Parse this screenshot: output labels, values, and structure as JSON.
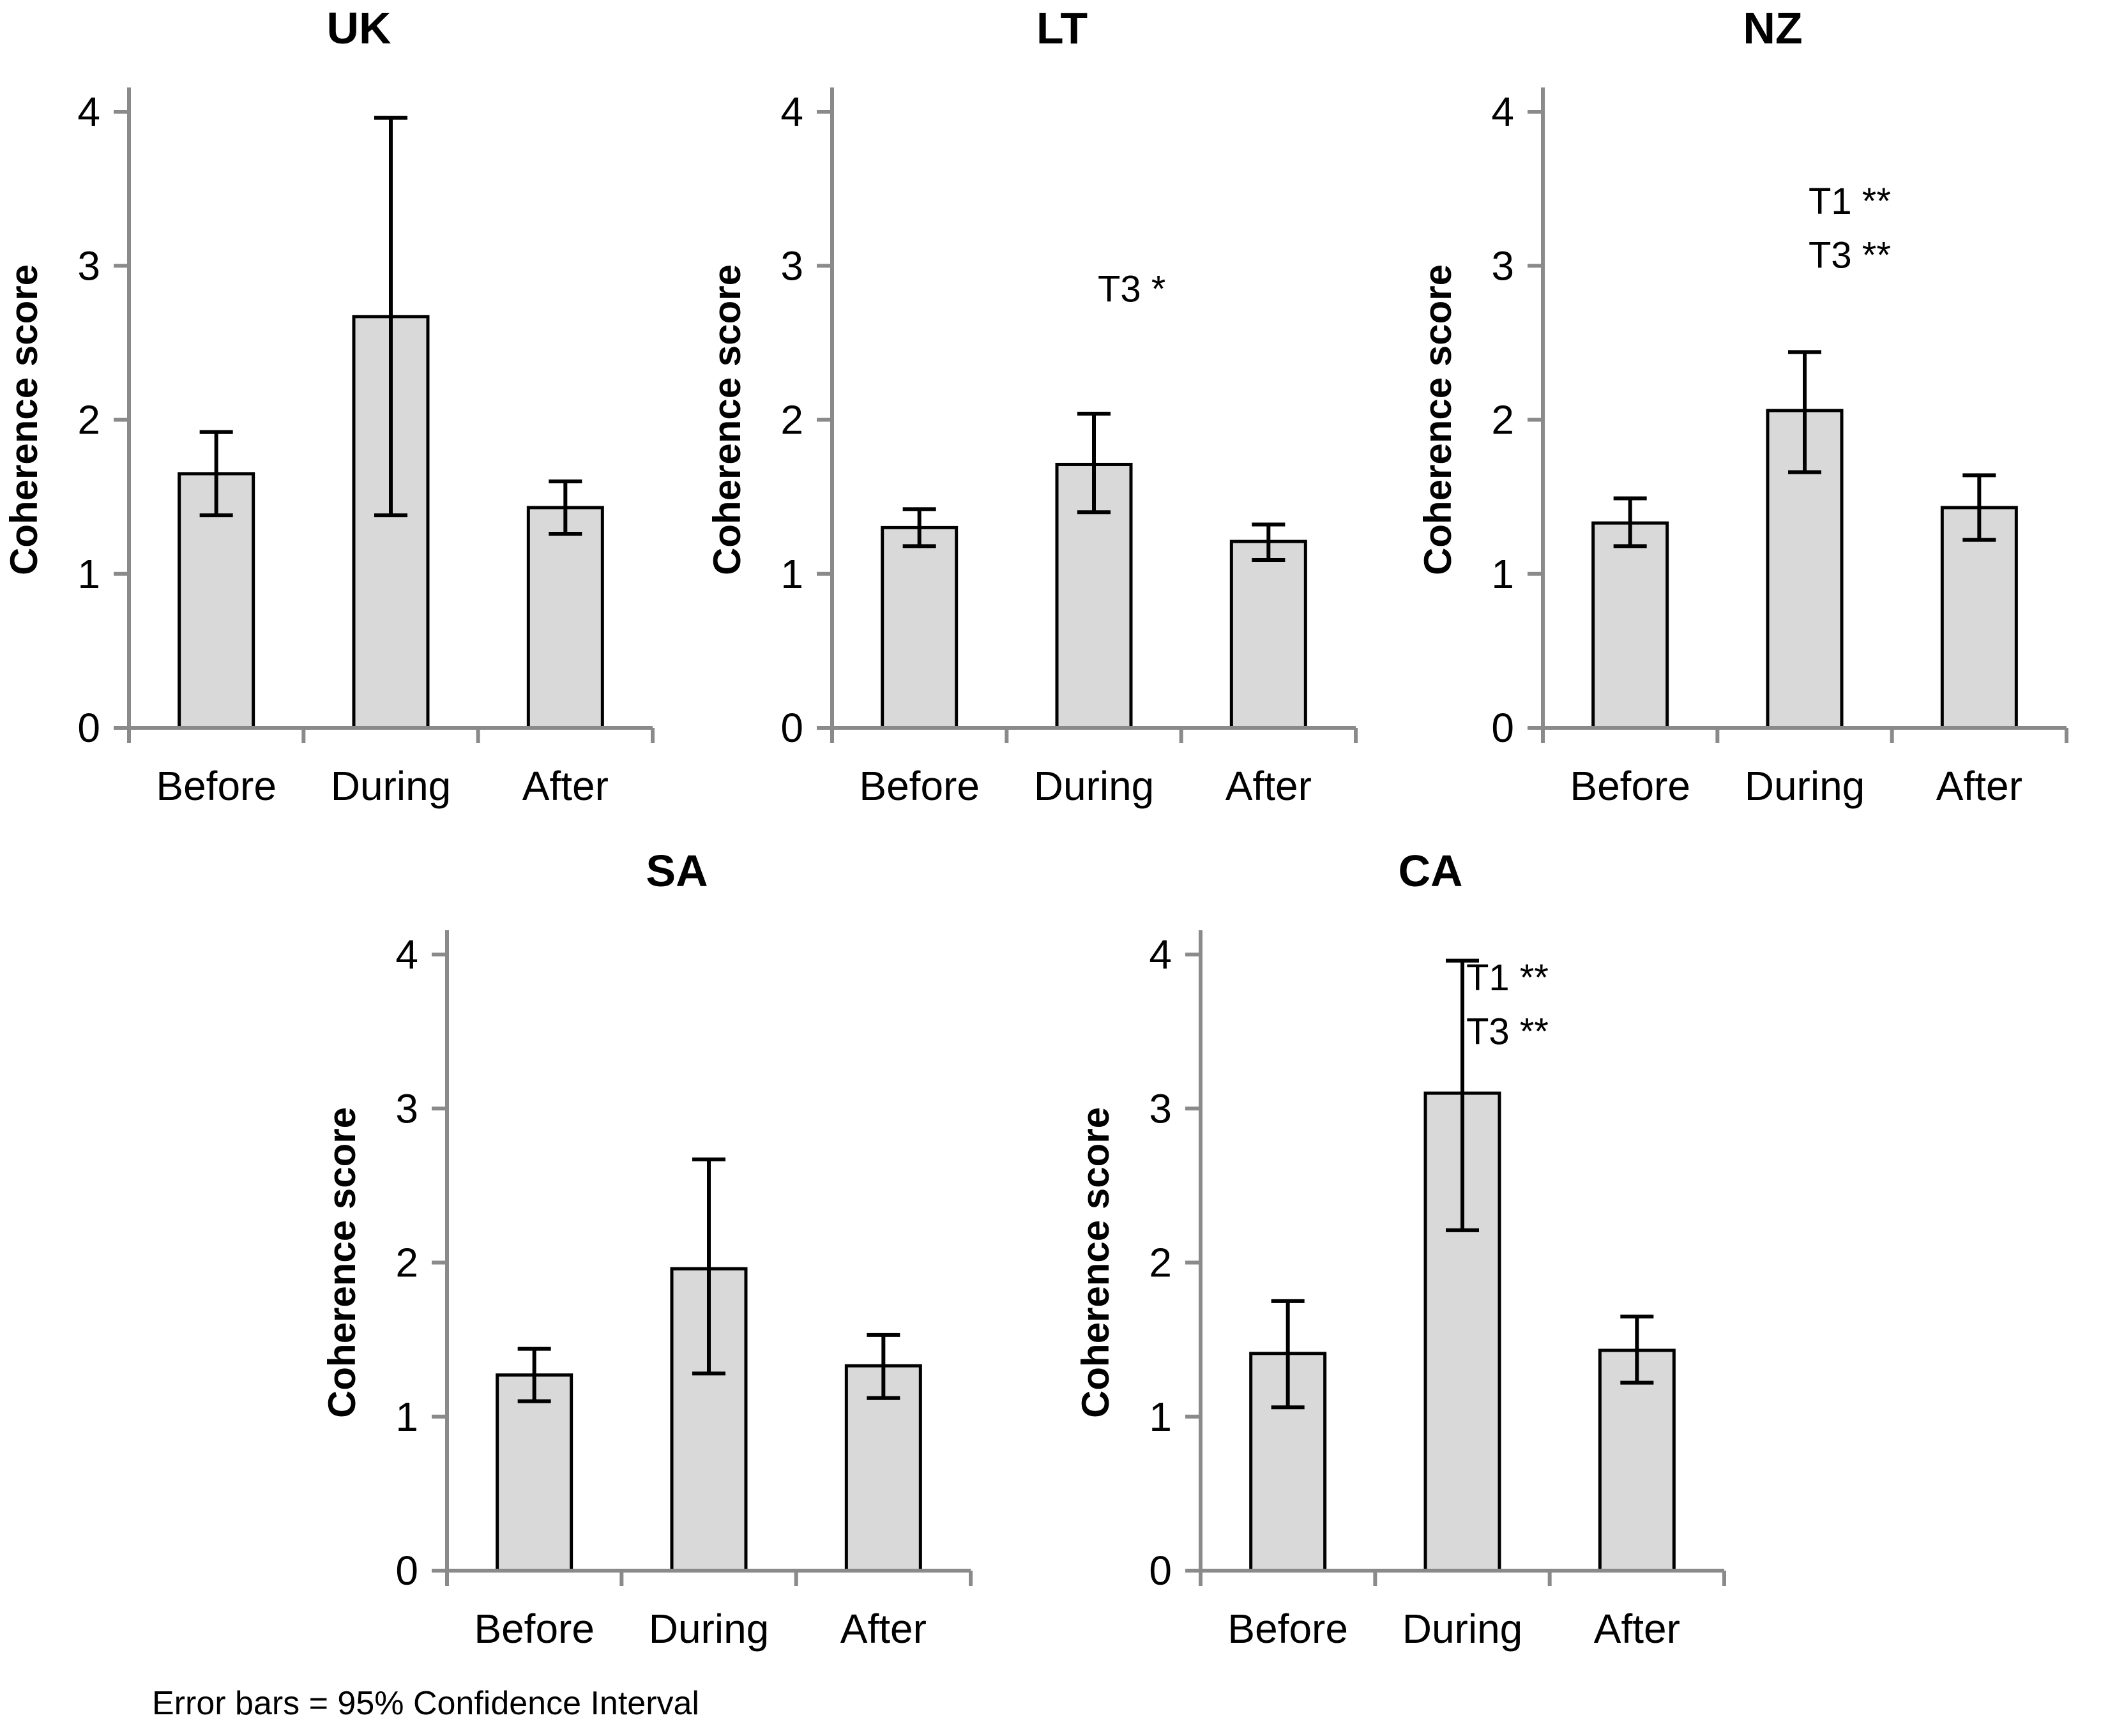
{
  "figure": {
    "footnote": "Error bars = 95% Confidence Interval"
  },
  "style": {
    "bar_fill": "#d9d9d9",
    "bar_stroke": "#000000",
    "error_color": "#000000",
    "axis_color": "#8a8a8a",
    "text_color": "#000000"
  },
  "chart_data": [
    {
      "type": "bar",
      "title": "UK",
      "ylabel": "Coherence score",
      "xlabel": "",
      "categories": [
        "Before",
        "During",
        "After"
      ],
      "values": [
        1.65,
        2.67,
        1.43
      ],
      "error_low": [
        1.38,
        1.38,
        1.26
      ],
      "error_high": [
        1.92,
        3.96,
        1.6
      ],
      "ylim": [
        0,
        4
      ],
      "yticks": [
        0,
        1,
        2,
        3,
        4
      ],
      "grid": false,
      "legend": "none",
      "annotations": []
    },
    {
      "type": "bar",
      "title": "LT",
      "ylabel": "Coherence score",
      "xlabel": "",
      "categories": [
        "Before",
        "During",
        "After"
      ],
      "values": [
        1.3,
        1.71,
        1.21
      ],
      "error_low": [
        1.18,
        1.4,
        1.09
      ],
      "error_high": [
        1.42,
        2.04,
        1.32
      ],
      "ylim": [
        0,
        4
      ],
      "yticks": [
        0,
        1,
        2,
        3,
        4
      ],
      "grid": false,
      "legend": "none",
      "annotations": [
        {
          "label": "T3 *",
          "at_category": "During",
          "y": 2.85
        }
      ]
    },
    {
      "type": "bar",
      "title": "NZ",
      "ylabel": "Coherence score",
      "xlabel": "",
      "categories": [
        "Before",
        "During",
        "After"
      ],
      "values": [
        1.33,
        2.06,
        1.43
      ],
      "error_low": [
        1.18,
        1.66,
        1.22
      ],
      "error_high": [
        1.49,
        2.44,
        1.64
      ],
      "ylim": [
        0,
        4
      ],
      "yticks": [
        0,
        1,
        2,
        3,
        4
      ],
      "grid": false,
      "legend": "none",
      "annotations": [
        {
          "label": "T1 **",
          "at_category": "During",
          "y": 3.42
        },
        {
          "label": "T3 **",
          "at_category": "During",
          "y": 3.07
        }
      ]
    },
    {
      "type": "bar",
      "title": "SA",
      "ylabel": "Coherence score",
      "xlabel": "",
      "categories": [
        "Before",
        "During",
        "After"
      ],
      "values": [
        1.27,
        1.96,
        1.33
      ],
      "error_low": [
        1.1,
        1.28,
        1.12
      ],
      "error_high": [
        1.44,
        2.67,
        1.53
      ],
      "ylim": [
        0,
        4
      ],
      "yticks": [
        0,
        1,
        2,
        3,
        4
      ],
      "grid": false,
      "legend": "none",
      "annotations": []
    },
    {
      "type": "bar",
      "title": "CA",
      "ylabel": "Coherence score",
      "xlabel": "",
      "categories": [
        "Before",
        "During",
        "After"
      ],
      "values": [
        1.41,
        3.1,
        1.43
      ],
      "error_low": [
        1.06,
        2.21,
        1.22
      ],
      "error_high": [
        1.75,
        3.96,
        1.65
      ],
      "ylim": [
        0,
        4
      ],
      "yticks": [
        0,
        1,
        2,
        3,
        4
      ],
      "grid": false,
      "legend": "none",
      "annotations": [
        {
          "label": "T1 **",
          "at_category": "During",
          "y": 3.85
        },
        {
          "label": "T3 **",
          "at_category": "During",
          "y": 3.5
        }
      ]
    }
  ]
}
